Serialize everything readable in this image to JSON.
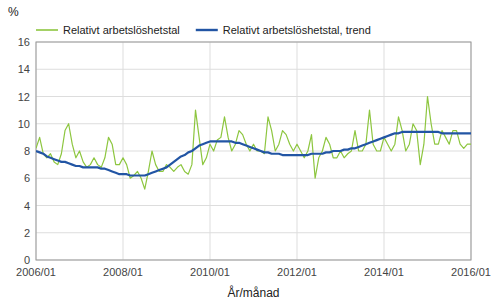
{
  "chart_data": {
    "type": "line",
    "ylabel": "%",
    "xlabel": "År/månad",
    "categories": [
      "2006/01",
      null,
      null,
      null,
      null,
      null,
      null,
      null,
      null,
      null,
      null,
      null,
      null,
      null,
      null,
      null,
      null,
      null,
      null,
      null,
      null,
      null,
      null,
      null,
      "2008/01",
      null,
      null,
      null,
      null,
      null,
      null,
      null,
      null,
      null,
      null,
      null,
      null,
      null,
      null,
      null,
      null,
      null,
      null,
      null,
      null,
      null,
      null,
      null,
      "2010/01",
      null,
      null,
      null,
      null,
      null,
      null,
      null,
      null,
      null,
      null,
      null,
      null,
      null,
      null,
      null,
      null,
      null,
      null,
      null,
      null,
      null,
      null,
      null,
      "2012/01",
      null,
      null,
      null,
      null,
      null,
      null,
      null,
      null,
      null,
      null,
      null,
      null,
      null,
      null,
      null,
      null,
      null,
      null,
      null,
      null,
      null,
      null,
      null,
      "2014/01",
      null,
      null,
      null,
      null,
      null,
      null,
      null,
      null,
      null,
      null,
      null,
      null,
      null,
      null,
      null,
      null,
      null,
      null,
      null,
      null,
      null,
      null,
      null,
      "2016/01"
    ],
    "series": [
      {
        "name": "Relativt arbetslöshetstal",
        "color": "#8dc63f",
        "values": [
          8.2,
          9.0,
          7.8,
          7.5,
          7.8,
          7.2,
          7.0,
          7.8,
          9.5,
          10.0,
          8.5,
          7.5,
          8.0,
          7.2,
          6.8,
          7.0,
          7.5,
          7.0,
          6.8,
          7.5,
          9.0,
          8.5,
          7.0,
          7.0,
          7.5,
          7.0,
          6.0,
          6.2,
          6.5,
          6.0,
          5.2,
          6.5,
          8.0,
          7.0,
          6.5,
          6.5,
          7.0,
          6.8,
          6.5,
          6.8,
          7.0,
          6.5,
          6.3,
          7.0,
          11.0,
          9.0,
          7.0,
          7.5,
          8.5,
          8.0,
          8.8,
          9.0,
          10.5,
          9.0,
          8.0,
          8.5,
          9.5,
          9.2,
          8.5,
          8.0,
          8.5,
          8.0,
          8.0,
          7.8,
          10.5,
          9.5,
          8.0,
          8.5,
          9.5,
          9.2,
          8.5,
          8.0,
          8.5,
          8.0,
          7.5,
          8.0,
          9.2,
          6.0,
          7.5,
          8.0,
          9.0,
          8.5,
          7.5,
          7.5,
          8.0,
          7.5,
          7.8,
          8.0,
          9.5,
          8.0,
          8.0,
          8.5,
          11.0,
          8.5,
          8.0,
          8.0,
          9.0,
          8.5,
          8.0,
          8.5,
          10.5,
          9.5,
          8.0,
          8.5,
          10.0,
          9.5,
          7.0,
          8.5,
          12.0,
          10.0,
          8.5,
          8.5,
          9.5,
          9.0,
          8.5,
          9.5,
          9.5,
          8.5,
          8.2,
          8.5,
          8.5
        ]
      },
      {
        "name": "Relativt arbetslöshetstal, trend",
        "color": "#2255a4",
        "values": [
          8.0,
          7.9,
          7.8,
          7.6,
          7.5,
          7.4,
          7.3,
          7.2,
          7.2,
          7.1,
          7.0,
          6.9,
          6.9,
          6.8,
          6.8,
          6.8,
          6.8,
          6.8,
          6.7,
          6.7,
          6.6,
          6.5,
          6.4,
          6.3,
          6.3,
          6.3,
          6.2,
          6.2,
          6.2,
          6.2,
          6.2,
          6.3,
          6.4,
          6.5,
          6.6,
          6.7,
          6.8,
          7.0,
          7.2,
          7.4,
          7.6,
          7.7,
          7.9,
          8.0,
          8.2,
          8.4,
          8.5,
          8.6,
          8.7,
          8.7,
          8.7,
          8.7,
          8.7,
          8.7,
          8.7,
          8.6,
          8.6,
          8.5,
          8.4,
          8.3,
          8.2,
          8.1,
          8.0,
          7.9,
          7.9,
          7.8,
          7.8,
          7.8,
          7.7,
          7.7,
          7.7,
          7.7,
          7.7,
          7.7,
          7.7,
          7.7,
          7.8,
          7.8,
          7.8,
          7.8,
          7.9,
          7.9,
          8.0,
          8.0,
          8.0,
          8.1,
          8.1,
          8.2,
          8.2,
          8.3,
          8.4,
          8.5,
          8.6,
          8.7,
          8.8,
          8.9,
          9.0,
          9.1,
          9.2,
          9.3,
          9.3,
          9.4,
          9.4,
          9.4,
          9.4,
          9.4,
          9.4,
          9.4,
          9.4,
          9.4,
          9.4,
          9.4,
          9.3,
          9.3,
          9.3,
          9.3,
          9.3,
          9.3,
          9.3,
          9.3,
          9.3
        ]
      }
    ],
    "ylim": [
      0,
      16
    ],
    "yticks": [
      0,
      2,
      4,
      6,
      8,
      10,
      12,
      14,
      16
    ],
    "grid": true,
    "legend": "top"
  }
}
